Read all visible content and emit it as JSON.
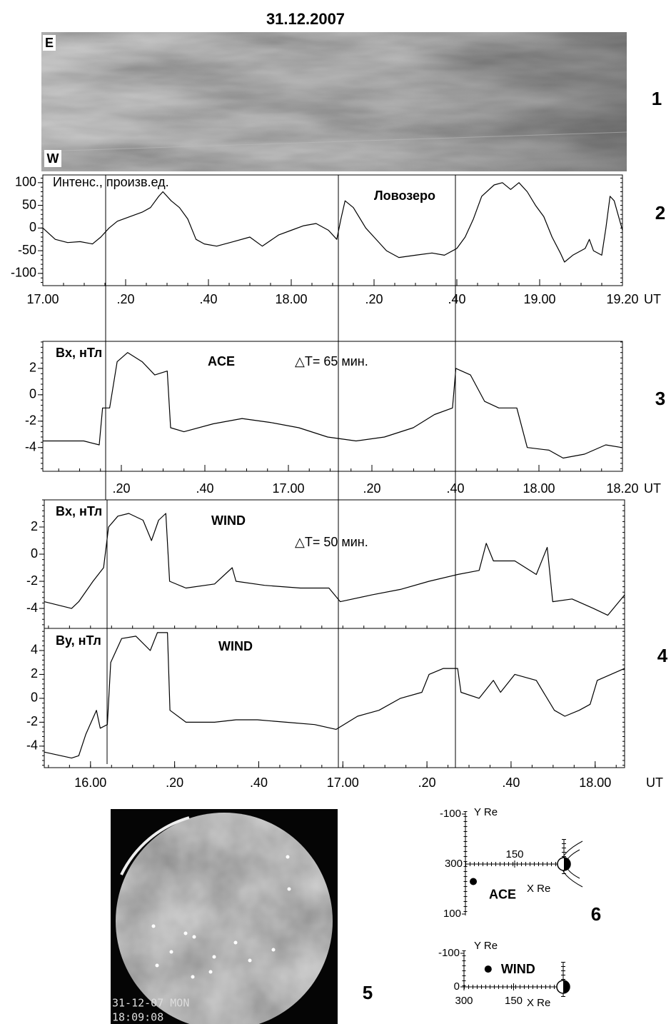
{
  "title": "31.12.2007",
  "chart_data": [
    {
      "type": "image",
      "panel_label": "1",
      "labels": [
        "E",
        "W"
      ]
    },
    {
      "type": "line",
      "panel_label": "2",
      "y_label": "Интенс., произв.ед.",
      "annotation": "Ловозеро",
      "x_unit": "UT",
      "xlim": [
        1020,
        1160
      ],
      "xticks": [
        {
          "value": 1020,
          "label": "17.00"
        },
        {
          "value": 1040,
          "label": ".20"
        },
        {
          "value": 1060,
          "label": ".40"
        },
        {
          "value": 1080,
          "label": "18.00"
        },
        {
          "value": 1100,
          "label": ".20"
        },
        {
          "value": 1120,
          "label": ".40"
        },
        {
          "value": 1140,
          "label": "19.00"
        },
        {
          "value": 1160,
          "label": "19.20"
        }
      ],
      "ylim": [
        -127,
        117
      ],
      "yticks": [
        -100,
        -50,
        0,
        50,
        100
      ],
      "x": [
        1020,
        1023,
        1026,
        1029,
        1032,
        1034,
        1036,
        1038,
        1041,
        1044,
        1046,
        1048,
        1049,
        1051,
        1053,
        1055,
        1057,
        1059,
        1062,
        1066,
        1070,
        1073,
        1077,
        1080,
        1083,
        1086,
        1089,
        1091,
        1092,
        1093,
        1095,
        1098,
        1100,
        1103,
        1106,
        1110,
        1114,
        1117,
        1120,
        1122,
        1124,
        1126,
        1129,
        1131,
        1133,
        1135,
        1137,
        1139,
        1141,
        1143,
        1145,
        1146,
        1148,
        1151,
        1152,
        1153,
        1155,
        1156,
        1157,
        1158,
        1160
      ],
      "series": [
        {
          "color": "#000000",
          "values": [
            0,
            -25,
            -32,
            -30,
            -35,
            -20,
            0,
            15,
            25,
            35,
            45,
            70,
            80,
            60,
            45,
            20,
            -25,
            -35,
            -40,
            -30,
            -20,
            -40,
            -15,
            -5,
            5,
            10,
            -5,
            -25,
            20,
            60,
            45,
            0,
            -20,
            -50,
            -65,
            -60,
            -55,
            -60,
            -45,
            -20,
            20,
            70,
            95,
            100,
            85,
            100,
            80,
            50,
            25,
            -20,
            -55,
            -75,
            -60,
            -45,
            -25,
            -50,
            -60,
            0,
            70,
            60,
            -5
          ]
        }
      ]
    },
    {
      "type": "line",
      "panel_label": "3",
      "y_label": "Bx, нТл",
      "annotation": "ACE",
      "delta": "△T= 65 мин.",
      "x_unit": "UT",
      "xlim": [
        961.2,
        1100
      ],
      "xticks": [
        {
          "value": 980,
          "label": ".20"
        },
        {
          "value": 1000,
          "label": ".40"
        },
        {
          "value": 1020,
          "label": "17.00"
        },
        {
          "value": 1040,
          "label": ".20"
        },
        {
          "value": 1060,
          "label": ".40"
        },
        {
          "value": 1080,
          "label": "18.00"
        },
        {
          "value": 1100,
          "label": "18.20"
        }
      ],
      "ylim": [
        -5.8,
        4.05
      ],
      "yticks": [
        -4,
        -2,
        0,
        2
      ],
      "x": [
        961.2,
        971,
        974.7,
        975.5,
        977.2,
        979,
        981.5,
        985,
        988,
        991,
        991.8,
        995,
        1002,
        1008.9,
        1015.7,
        1022.5,
        1029.4,
        1036.2,
        1043,
        1049.9,
        1055,
        1059.3,
        1060.1,
        1063.6,
        1067,
        1070.4,
        1074.7,
        1077.2,
        1082.4,
        1085.8,
        1090.9,
        1096,
        1099.8
      ],
      "series": [
        {
          "color": "#000000",
          "values": [
            -3.5,
            -3.5,
            -3.8,
            -1,
            -1,
            2.5,
            3.2,
            2.5,
            1.5,
            1.8,
            -2.5,
            -2.8,
            -2.2,
            -1.8,
            -2.1,
            -2.5,
            -3.2,
            -3.5,
            -3.2,
            -2.5,
            -1.5,
            -1,
            2,
            1.5,
            -0.5,
            -1,
            -1,
            -4,
            -4.2,
            -4.8,
            -4.5,
            -3.8,
            -4
          ]
        }
      ]
    },
    {
      "type": "line",
      "panel_label": "4",
      "y_label": "Bx, нТл",
      "annotation": "WIND",
      "delta": "△T= 50 мин.",
      "xlim": [
        949,
        1087
      ],
      "ylim": [
        -5.47,
        4.0
      ],
      "yticks": [
        -4,
        -2,
        0,
        2
      ],
      "x": [
        949,
        955.5,
        957.2,
        960.6,
        963.1,
        964.3,
        966.5,
        969.1,
        972.5,
        974.5,
        976.2,
        977.9,
        978.8,
        982.7,
        989.5,
        993.7,
        994.6,
        1001.4,
        1009.9,
        1016.7,
        1019.4,
        1026.9,
        1033.7,
        1040.5,
        1047.3,
        1052.4,
        1054.1,
        1055.8,
        1060.9,
        1066,
        1068.6,
        1069.9,
        1074.5,
        1079.6,
        1083,
        1087
      ],
      "series": [
        {
          "color": "#000000",
          "values": [
            -3.5,
            -4,
            -3.5,
            -2,
            -1,
            2,
            2.8,
            3,
            2.5,
            1,
            2.5,
            3,
            -2,
            -2.5,
            -2.2,
            -1,
            -2,
            -2.3,
            -2.5,
            -2.5,
            -3.5,
            -3,
            -2.6,
            -2,
            -1.5,
            -1.2,
            0.8,
            -0.5,
            -0.5,
            -1.5,
            0.5,
            -3.5,
            -3.3,
            -4,
            -4.5,
            -3
          ]
        }
      ]
    },
    {
      "type": "line",
      "y_label": "By, нТл",
      "annotation": "WIND",
      "x_unit": "UT",
      "xlim": [
        949,
        1087
      ],
      "xticks": [
        {
          "value": 960,
          "label": "16.00"
        },
        {
          "value": 980,
          "label": ".20"
        },
        {
          "value": 1000,
          "label": ".40"
        },
        {
          "value": 1020,
          "label": "17.00"
        },
        {
          "value": 1040,
          "label": ".20"
        },
        {
          "value": 1060,
          "label": ".40"
        },
        {
          "value": 1080,
          "label": "18.00"
        }
      ],
      "ylim": [
        -5.8,
        5.85
      ],
      "yticks": [
        -4,
        -2,
        0,
        2,
        4
      ],
      "x": [
        949,
        955.5,
        957.2,
        958.9,
        961.4,
        962.3,
        964,
        964.8,
        967.4,
        970.8,
        974.2,
        975.9,
        978.3,
        978.9,
        982.7,
        989.5,
        994.6,
        999.7,
        1006.5,
        1013.3,
        1018.4,
        1023.5,
        1028.6,
        1033.7,
        1038.8,
        1040.5,
        1043.9,
        1047.3,
        1048.1,
        1052.4,
        1055.8,
        1057.5,
        1060.9,
        1066,
        1070.3,
        1072.8,
        1076.2,
        1078.8,
        1080.5,
        1087
      ],
      "series": [
        {
          "color": "#000000",
          "values": [
            -4.5,
            -5,
            -4.8,
            -3,
            -1,
            -2.5,
            -2.2,
            3,
            5,
            5.2,
            4,
            5.5,
            5.5,
            -1,
            -2,
            -2,
            -1.8,
            -1.8,
            -2,
            -2.2,
            -2.6,
            -1.5,
            -1,
            0,
            0.5,
            2,
            2.5,
            2.5,
            0.5,
            0,
            1.5,
            0.5,
            2,
            1.5,
            -1,
            -1.5,
            -1,
            -0.5,
            1.5,
            2.5
          ]
        }
      ]
    },
    {
      "type": "image",
      "panel_label": "5",
      "labels": [
        "31-12-07 MON",
        "18:09:08"
      ]
    },
    {
      "type": "scatter",
      "panel_label": "6",
      "x_label": "X Re",
      "y_label": "Y Re",
      "xlim": [
        300,
        0
      ],
      "ylim": [
        -100,
        100
      ],
      "xticks": [
        300,
        150
      ],
      "yticks": [
        -100,
        100
      ],
      "series": [
        {
          "name": "ACE",
          "color": "#000000",
          "x": [
            276
          ],
          "values": [
            35
          ]
        }
      ]
    },
    {
      "type": "scatter",
      "x_label": "X Re",
      "y_label": "Y Re",
      "xlim": [
        300,
        0
      ],
      "ylim": [
        -100,
        0
      ],
      "xticks": [
        300,
        150
      ],
      "yticks": [
        -100,
        0
      ],
      "series": [
        {
          "name": "WIND",
          "color": "#000000",
          "x": [
            227
          ],
          "values": [
            -53
          ]
        }
      ]
    }
  ]
}
